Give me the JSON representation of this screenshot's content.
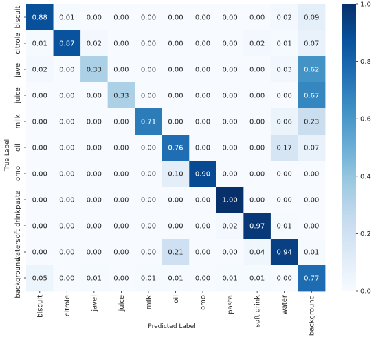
{
  "chart_data": {
    "type": "heatmap",
    "title": "",
    "xlabel": "Predicted Label",
    "ylabel": "True Label",
    "x_categories": [
      "biscuit",
      "citrole",
      "javel",
      "juice",
      "milk",
      "oil",
      "omo",
      "pasta",
      "soft drink",
      "water",
      "background"
    ],
    "y_categories": [
      "biscuit",
      "citrole",
      "javel",
      "juice",
      "milk",
      "oil",
      "omo",
      "pasta",
      "soft drink",
      "water",
      "background"
    ],
    "values": [
      [
        0.88,
        0.01,
        0.0,
        0.0,
        0.0,
        0.0,
        0.0,
        0.0,
        0.0,
        0.02,
        0.09
      ],
      [
        0.01,
        0.87,
        0.02,
        0.0,
        0.0,
        0.0,
        0.0,
        0.0,
        0.02,
        0.01,
        0.07
      ],
      [
        0.02,
        0.0,
        0.33,
        0.0,
        0.0,
        0.0,
        0.0,
        0.0,
        0.0,
        0.03,
        0.62
      ],
      [
        0.0,
        0.0,
        0.0,
        0.33,
        0.0,
        0.0,
        0.0,
        0.0,
        0.0,
        0.0,
        0.67
      ],
      [
        0.0,
        0.0,
        0.0,
        0.0,
        0.71,
        0.0,
        0.0,
        0.0,
        0.0,
        0.06,
        0.23
      ],
      [
        0.0,
        0.0,
        0.0,
        0.0,
        0.0,
        0.76,
        0.0,
        0.0,
        0.0,
        0.17,
        0.07
      ],
      [
        0.0,
        0.0,
        0.0,
        0.0,
        0.0,
        0.1,
        0.9,
        0.0,
        0.0,
        0.0,
        0.0
      ],
      [
        0.0,
        0.0,
        0.0,
        0.0,
        0.0,
        0.0,
        0.0,
        1.0,
        0.0,
        0.0,
        0.0
      ],
      [
        0.0,
        0.0,
        0.0,
        0.0,
        0.0,
        0.0,
        0.0,
        0.02,
        0.97,
        0.01,
        0.0
      ],
      [
        0.0,
        0.0,
        0.0,
        0.0,
        0.0,
        0.21,
        0.0,
        0.0,
        0.04,
        0.94,
        0.01
      ],
      [
        0.05,
        0.0,
        0.01,
        0.0,
        0.01,
        0.01,
        0.0,
        0.01,
        0.01,
        0.0,
        0.77
      ]
    ],
    "value_format": "0.00",
    "vmin": 0.0,
    "vmax": 1.0,
    "colormap": "Blues",
    "colorbar_ticks": [
      "0.0",
      "0.2",
      "0.4",
      "0.6",
      "0.8",
      "1.0"
    ],
    "colorbar_tick_values": [
      0.0,
      0.2,
      0.4,
      0.6,
      0.8,
      1.0
    ],
    "grid": false
  }
}
